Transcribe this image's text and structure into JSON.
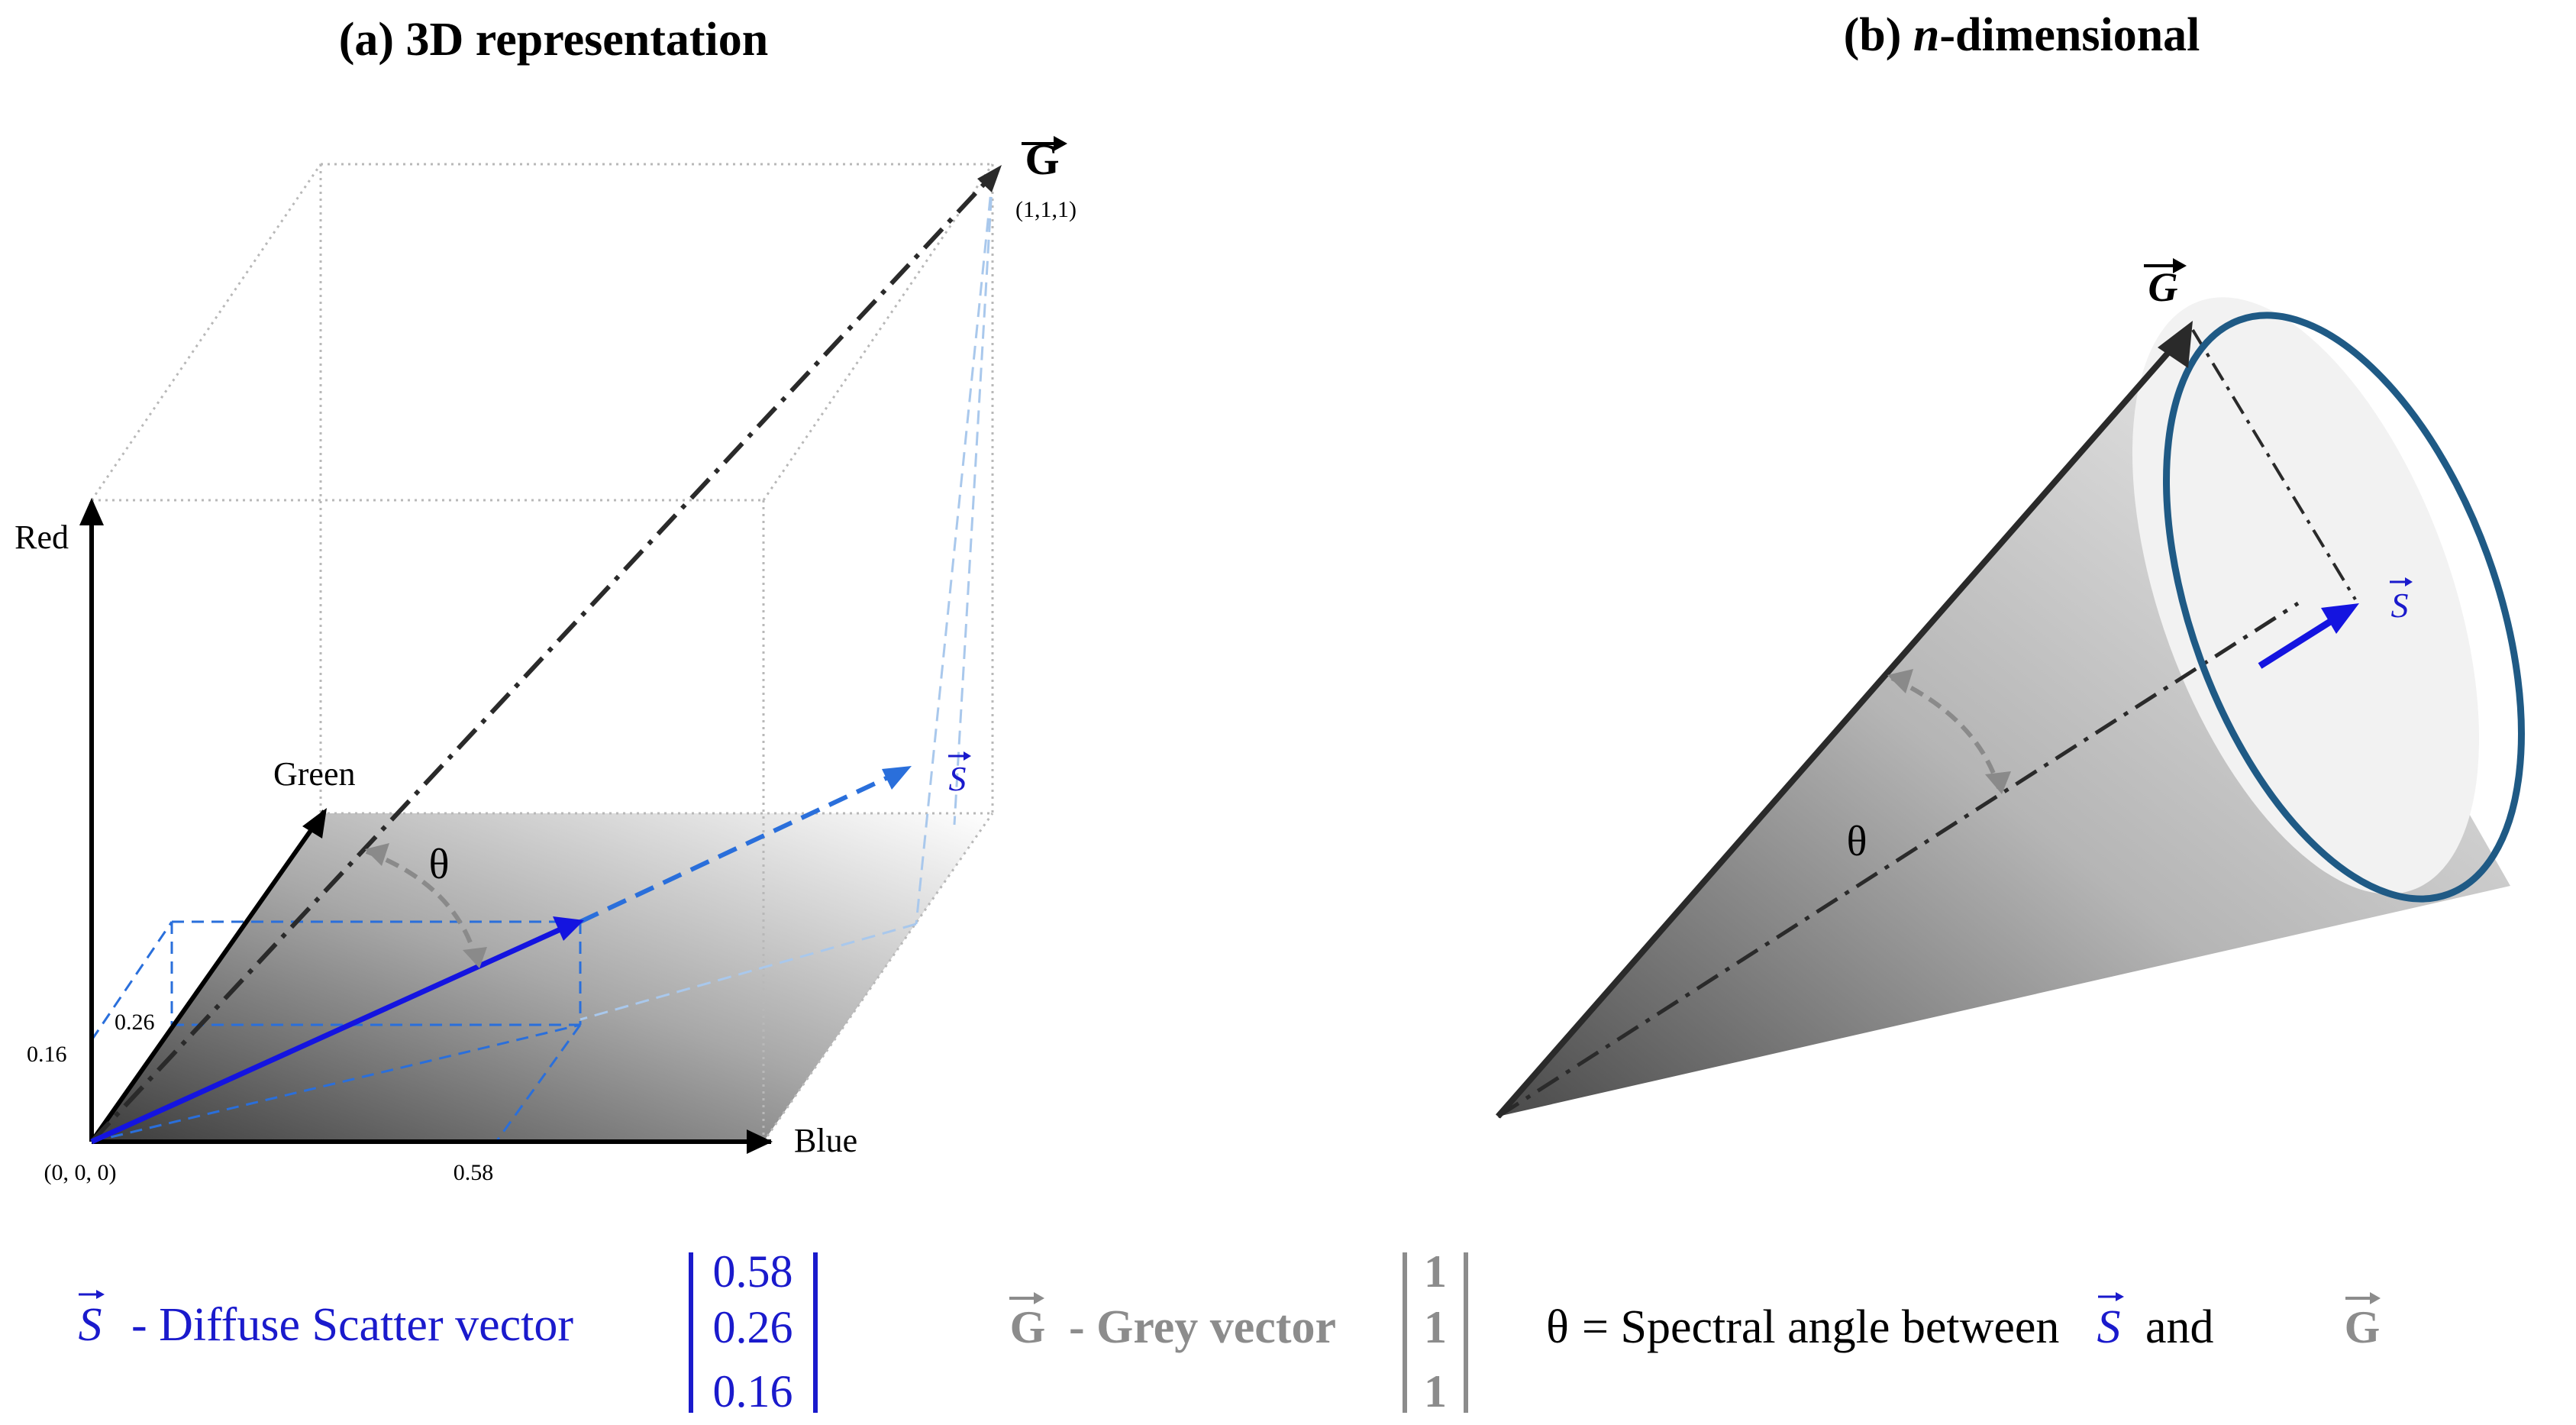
{
  "panel_a": {
    "title": "(a) 3D representation",
    "axis_red": "Red",
    "axis_green": "Green",
    "axis_blue": "Blue",
    "origin_label": "(0, 0, 0)",
    "grey_corner_label": "(1,1,1)",
    "tick_red": "0.16",
    "tick_green": "0.26",
    "tick_blue": "0.58",
    "theta": "θ",
    "vector_g_symbol": "G",
    "vector_s_symbol": "S",
    "scatter_vector": {
      "blue": 0.58,
      "green": 0.26,
      "red": 0.16
    },
    "grey_vector": {
      "blue": 1,
      "green": 1,
      "red": 1
    }
  },
  "panel_b": {
    "title_prefix": "(b) ",
    "title_italic": "n",
    "title_suffix": "-dimensional",
    "vector_g_symbol": "G",
    "vector_s_symbol": "S",
    "theta": "θ"
  },
  "legend": {
    "s_symbol": "S",
    "s_text": "- Diffuse Scatter vector",
    "s_values": [
      "0.58",
      "0.26",
      "0.16"
    ],
    "g_symbol": "G",
    "g_text": "- Grey vector",
    "g_values": [
      "1",
      "1",
      "1"
    ],
    "theta_symbol": "θ",
    "theta_text": "= Spectral angle between",
    "and_text": "and"
  },
  "colors": {
    "scatter_blue": "#1a1acc",
    "scatter_blue_light": "#2a6fdb",
    "grey_vector": "#8c8c8c",
    "cone_ring": "#1f5a85",
    "axis": "#000000"
  }
}
